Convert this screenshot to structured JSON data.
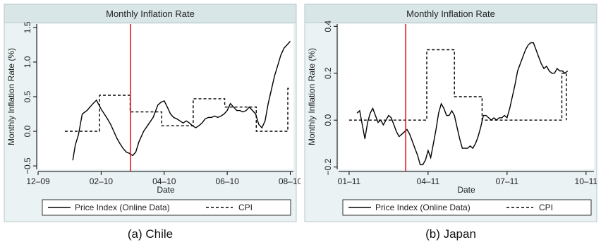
{
  "chart_data": [
    {
      "type": "line",
      "title": "Monthly Inflation Rate",
      "ylabel": "Monthly Inflation Rate (%)",
      "xlabel": "Date",
      "caption": "(a) Chile",
      "x_ticks": [
        "12–09",
        "02–10",
        "04–10",
        "06–10",
        "08–10"
      ],
      "x_tick_positions": [
        0,
        2,
        4,
        6,
        8
      ],
      "xlim": [
        0,
        8.1
      ],
      "y_ticks": [
        "−0.5",
        "0.0",
        "0.5",
        "1.0",
        "1.5"
      ],
      "y_tick_values": [
        -0.5,
        0.0,
        0.5,
        1.0,
        1.5
      ],
      "ylim": [
        -0.55,
        1.55
      ],
      "vline_x": 2.93,
      "vline_color": "#e41a1c",
      "legend": [
        "Price Index (Online Data)",
        "CPI"
      ],
      "legend_position": "bottom",
      "series": [
        {
          "name": "Price Index (Online Data)",
          "style": "solid",
          "x": [
            1.1,
            1.18,
            1.28,
            1.4,
            1.55,
            1.7,
            1.85,
            2.0,
            2.1,
            2.2,
            2.3,
            2.4,
            2.5,
            2.6,
            2.7,
            2.8,
            2.9,
            3.0,
            3.1,
            3.2,
            3.35,
            3.5,
            3.65,
            3.8,
            3.9,
            4.0,
            4.1,
            4.2,
            4.3,
            4.4,
            4.5,
            4.6,
            4.7,
            4.8,
            4.9,
            5.0,
            5.1,
            5.2,
            5.3,
            5.4,
            5.5,
            5.6,
            5.7,
            5.8,
            5.9,
            6.0,
            6.1,
            6.2,
            6.3,
            6.4,
            6.5,
            6.6,
            6.7,
            6.8,
            6.9,
            7.0,
            7.1,
            7.2,
            7.3,
            7.4,
            7.5,
            7.6,
            7.7,
            7.8,
            7.9,
            8.0
          ],
          "y": [
            -0.42,
            -0.2,
            -0.05,
            0.25,
            0.3,
            0.38,
            0.45,
            0.32,
            0.25,
            0.18,
            0.1,
            0.0,
            -0.1,
            -0.18,
            -0.25,
            -0.3,
            -0.32,
            -0.35,
            -0.3,
            -0.15,
            0.0,
            0.1,
            0.2,
            0.38,
            0.42,
            0.44,
            0.35,
            0.25,
            0.2,
            0.18,
            0.15,
            0.12,
            0.15,
            0.12,
            0.08,
            0.05,
            0.08,
            0.12,
            0.18,
            0.2,
            0.2,
            0.22,
            0.2,
            0.22,
            0.25,
            0.3,
            0.4,
            0.35,
            0.3,
            0.3,
            0.28,
            0.3,
            0.35,
            0.3,
            0.25,
            0.1,
            0.05,
            0.15,
            0.4,
            0.6,
            0.8,
            0.95,
            1.1,
            1.2,
            1.25,
            1.3
          ]
        },
        {
          "name": "CPI",
          "style": "dashed",
          "x": [
            0.85,
            1.95,
            1.95,
            2.92,
            2.92,
            3.92,
            3.92,
            4.92,
            4.92,
            5.92,
            5.92,
            6.92,
            6.92,
            7.92,
            7.92,
            8.02
          ],
          "y": [
            0.0,
            0.0,
            0.52,
            0.52,
            0.28,
            0.28,
            0.08,
            0.08,
            0.47,
            0.47,
            0.35,
            0.35,
            0.0,
            0.0,
            0.62,
            0.62
          ]
        }
      ]
    },
    {
      "type": "line",
      "title": "Monthly Inflation Rate",
      "ylabel": "Monthly Inflation Rate (%)",
      "xlabel": "Date",
      "caption": "(b) Japan",
      "x_ticks": [
        "01–11",
        "04–11",
        "07–11",
        "10–11"
      ],
      "x_tick_positions": [
        0,
        3,
        6,
        9
      ],
      "xlim": [
        -0.4,
        9.3
      ],
      "y_ticks": [
        "−0.2",
        "0.0",
        "0.2",
        "0.4"
      ],
      "y_tick_values": [
        -0.2,
        0.0,
        0.2,
        0.4
      ],
      "ylim": [
        -0.21,
        0.41
      ],
      "vline_x": 2.15,
      "vline_color": "#e41a1c",
      "legend": [
        "Price Index (Online Data)",
        "CPI"
      ],
      "legend_position": "bottom",
      "series": [
        {
          "name": "Price Index (Online Data)",
          "style": "solid",
          "x": [
            0.3,
            0.4,
            0.5,
            0.6,
            0.7,
            0.8,
            0.9,
            1.0,
            1.1,
            1.2,
            1.3,
            1.4,
            1.5,
            1.6,
            1.7,
            1.8,
            1.9,
            2.0,
            2.1,
            2.2,
            2.3,
            2.4,
            2.5,
            2.6,
            2.7,
            2.8,
            2.9,
            3.0,
            3.1,
            3.2,
            3.3,
            3.4,
            3.5,
            3.6,
            3.7,
            3.8,
            3.9,
            4.0,
            4.1,
            4.2,
            4.3,
            4.4,
            4.5,
            4.6,
            4.7,
            4.8,
            4.9,
            5.0,
            5.1,
            5.2,
            5.3,
            5.4,
            5.5,
            5.6,
            5.7,
            5.8,
            5.9,
            6.0,
            6.1,
            6.2,
            6.3,
            6.4,
            6.5,
            6.6,
            6.7,
            6.8,
            6.9,
            7.0,
            7.1,
            7.2,
            7.3,
            7.4,
            7.5,
            7.6,
            7.7,
            7.8,
            7.9,
            8.0,
            8.1,
            8.2,
            8.3
          ],
          "y": [
            0.03,
            0.04,
            -0.02,
            -0.08,
            -0.01,
            0.03,
            0.05,
            0.02,
            -0.01,
            0.0,
            -0.02,
            0.0,
            0.02,
            0.01,
            -0.02,
            -0.05,
            -0.07,
            -0.06,
            -0.05,
            -0.04,
            -0.06,
            -0.09,
            -0.12,
            -0.15,
            -0.19,
            -0.19,
            -0.17,
            -0.13,
            -0.16,
            -0.1,
            -0.04,
            0.03,
            0.07,
            0.05,
            0.02,
            0.02,
            0.04,
            0.02,
            -0.03,
            -0.08,
            -0.12,
            -0.12,
            -0.12,
            -0.11,
            -0.12,
            -0.1,
            -0.07,
            -0.03,
            0.02,
            0.02,
            0.01,
            0.0,
            0.01,
            0.0,
            0.01,
            0.01,
            0.02,
            0.01,
            0.05,
            0.1,
            0.15,
            0.21,
            0.24,
            0.27,
            0.3,
            0.32,
            0.33,
            0.33,
            0.3,
            0.27,
            0.24,
            0.22,
            0.23,
            0.21,
            0.2,
            0.2,
            0.22,
            0.21,
            0.21,
            0.2,
            0.21
          ]
        },
        {
          "name": "CPI",
          "style": "dashed",
          "x": [
            0.0,
            2.95,
            2.95,
            4.0,
            4.0,
            5.05,
            5.05,
            8.08,
            8.08,
            8.25,
            8.25
          ],
          "y": [
            0.0,
            0.0,
            0.3,
            0.3,
            0.1,
            0.1,
            0.0,
            0.0,
            0.2,
            0.2,
            0.0
          ]
        }
      ]
    }
  ]
}
